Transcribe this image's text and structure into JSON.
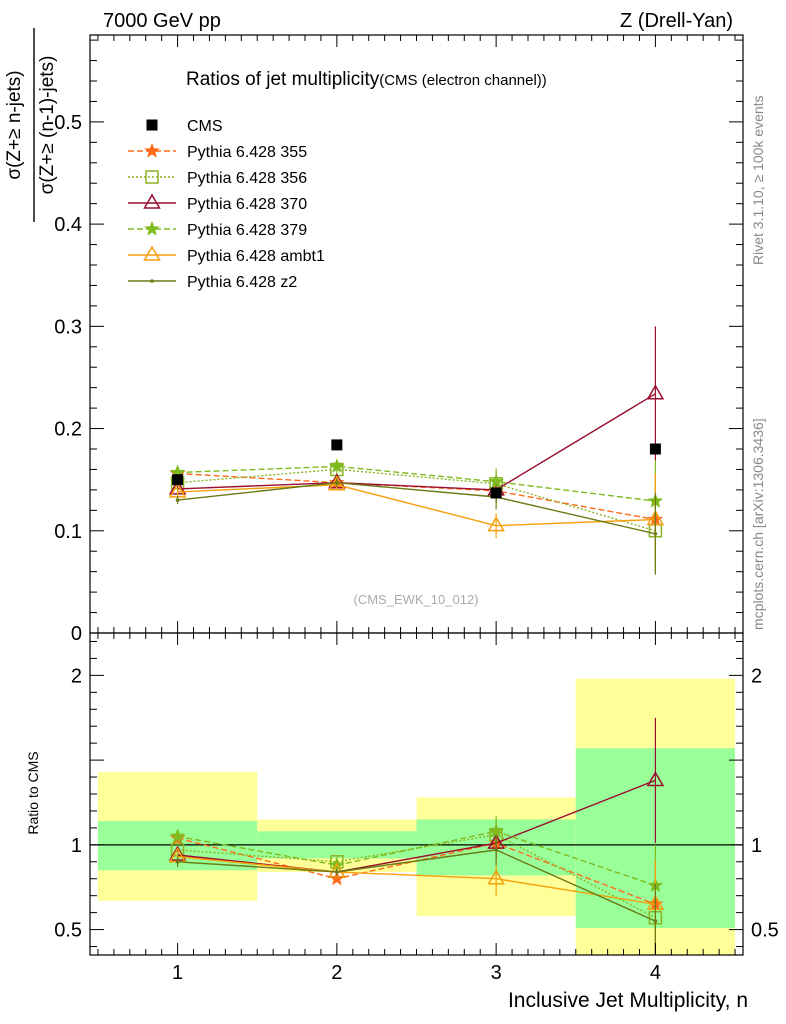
{
  "header": {
    "left": "7000 GeV pp",
    "right": "Z (Drell-Yan)"
  },
  "side_labels": {
    "rivet": "Rivet 3.1.10, ≥ 100k events",
    "ref": "mcplots.cern.ch [arXiv:1306.3436]"
  },
  "chart_data": [
    {
      "type": "line",
      "title": "Ratios of jet multiplicity",
      "subtitle": "(CMS (electron channel))",
      "ylabel_num": "σ(Z+≥ n-jets)",
      "ylabel_den": "σ(Z+≥ (n-1)-jets)",
      "watermark": "(CMS_EWK_10_012)",
      "xlim": [
        0.45,
        4.55
      ],
      "ylim": [
        0,
        0.585
      ],
      "yticks": [
        {
          "v": 0.0,
          "label": "0"
        },
        {
          "v": 0.1,
          "label": "0.1"
        },
        {
          "v": 0.2,
          "label": "0.2"
        },
        {
          "v": 0.3,
          "label": "0.3"
        },
        {
          "v": 0.4,
          "label": "0.4"
        },
        {
          "v": 0.5,
          "label": "0.5"
        }
      ],
      "legend_position": "top-left",
      "data": {
        "name": "CMS",
        "x": [
          1,
          2,
          3,
          4
        ],
        "y": [
          0.15,
          0.184,
          0.137,
          0.18
        ]
      },
      "series": [
        {
          "name": "Pythia 6.428 355",
          "color": "#ff6a1a",
          "dash": "6,3",
          "marker": "star",
          "x": [
            1,
            2,
            3,
            4
          ],
          "y": [
            0.156,
            0.147,
            0.139,
            0.111
          ],
          "err": [
            0.004,
            0.004,
            0.012,
            0.045
          ]
        },
        {
          "name": "Pythia 6.428 356",
          "color": "#8ab424",
          "dash": "2,2",
          "marker": "square",
          "x": [
            1,
            2,
            3,
            4
          ],
          "y": [
            0.147,
            0.16,
            0.146,
            0.1
          ],
          "err": [
            0.004,
            0.005,
            0.012,
            0.04
          ]
        },
        {
          "name": "Pythia 6.428 370",
          "color": "#9a0f2f",
          "dash": "",
          "marker": "triangle",
          "x": [
            1,
            2,
            3,
            4
          ],
          "y": [
            0.141,
            0.147,
            0.14,
            0.234
          ],
          "err": [
            0.004,
            0.004,
            0.012,
            0.066
          ]
        },
        {
          "name": "Pythia 6.428 379",
          "color": "#7fbb1e",
          "dash": "6,3",
          "marker": "star",
          "x": [
            1,
            2,
            3,
            4
          ],
          "y": [
            0.157,
            0.163,
            0.148,
            0.129
          ],
          "err": [
            0.004,
            0.005,
            0.013,
            0.04
          ]
        },
        {
          "name": "Pythia 6.428 ambt1",
          "color": "#f5a00a",
          "dash": "",
          "marker": "triangle",
          "x": [
            1,
            2,
            3,
            4
          ],
          "y": [
            0.138,
            0.145,
            0.105,
            0.111
          ],
          "err": [
            0.004,
            0.004,
            0.012,
            0.045
          ]
        },
        {
          "name": "Pythia 6.428 z2",
          "color": "#6b7a14",
          "dash": "",
          "marker": "dot",
          "x": [
            1,
            2,
            3,
            4
          ],
          "y": [
            0.13,
            0.147,
            0.133,
            0.097
          ],
          "err": [
            0.004,
            0.004,
            0.012,
            0.04
          ]
        }
      ]
    },
    {
      "type": "line",
      "ylabel": "Ratio to CMS",
      "xlabel": "Inclusive Jet Multiplicity, n",
      "xlim": [
        0.45,
        4.55
      ],
      "ylim": [
        0.35,
        2.25
      ],
      "xticks": [
        {
          "v": 1,
          "label": "1"
        },
        {
          "v": 2,
          "label": "2"
        },
        {
          "v": 3,
          "label": "3"
        },
        {
          "v": 4,
          "label": "4"
        }
      ],
      "yticks": [
        {
          "v": 0.5,
          "label": "0.5"
        },
        {
          "v": 1.0,
          "label": "1"
        },
        {
          "v": 2.0,
          "label": "2"
        }
      ],
      "bands": [
        {
          "x0": 0.5,
          "x1": 1.5,
          "yellow": [
            0.67,
            1.43
          ],
          "green": [
            0.85,
            1.14
          ]
        },
        {
          "x0": 1.5,
          "x1": 2.5,
          "yellow": [
            0.84,
            1.15
          ],
          "green": [
            0.92,
            1.08
          ]
        },
        {
          "x0": 2.5,
          "x1": 3.5,
          "yellow": [
            0.58,
            1.28
          ],
          "green": [
            0.82,
            1.15
          ]
        },
        {
          "x0": 3.5,
          "x1": 4.5,
          "yellow": [
            0.35,
            1.98
          ],
          "green": [
            0.51,
            1.57
          ]
        }
      ],
      "series": [
        {
          "name": "Pythia 6.428 355",
          "color": "#ff6a1a",
          "dash": "6,3",
          "marker": "star",
          "x": [
            1,
            2,
            3,
            4
          ],
          "y": [
            1.04,
            0.8,
            1.01,
            0.65
          ],
          "err": [
            0.03,
            0.02,
            0.09,
            0.25
          ]
        },
        {
          "name": "Pythia 6.428 356",
          "color": "#8ab424",
          "dash": "2,2",
          "marker": "square",
          "x": [
            1,
            2,
            3,
            4
          ],
          "y": [
            0.97,
            0.9,
            1.06,
            0.57
          ],
          "err": [
            0.03,
            0.03,
            0.09,
            0.23
          ]
        },
        {
          "name": "Pythia 6.428 370",
          "color": "#9a0f2f",
          "dash": "",
          "marker": "triangle",
          "x": [
            1,
            2,
            3,
            4
          ],
          "y": [
            0.94,
            0.84,
            1.01,
            1.38
          ],
          "err": [
            0.03,
            0.02,
            0.09,
            0.37
          ]
        },
        {
          "name": "Pythia 6.428 379",
          "color": "#7fbb1e",
          "dash": "6,3",
          "marker": "star",
          "x": [
            1,
            2,
            3,
            4
          ],
          "y": [
            1.05,
            0.88,
            1.08,
            0.76
          ],
          "err": [
            0.03,
            0.03,
            0.09,
            0.24
          ]
        },
        {
          "name": "Pythia 6.428 ambt1",
          "color": "#f5a00a",
          "dash": "",
          "marker": "triangle",
          "x": [
            1,
            2,
            3,
            4
          ],
          "y": [
            0.93,
            0.84,
            0.8,
            0.65
          ],
          "err": [
            0.03,
            0.02,
            0.1,
            0.26
          ]
        },
        {
          "name": "Pythia 6.428 z2",
          "color": "#6b7a14",
          "dash": "",
          "marker": "dot",
          "x": [
            1,
            2,
            3,
            4
          ],
          "y": [
            0.9,
            0.84,
            0.97,
            0.55
          ],
          "err": [
            0.03,
            0.02,
            0.09,
            0.22
          ]
        }
      ]
    }
  ]
}
